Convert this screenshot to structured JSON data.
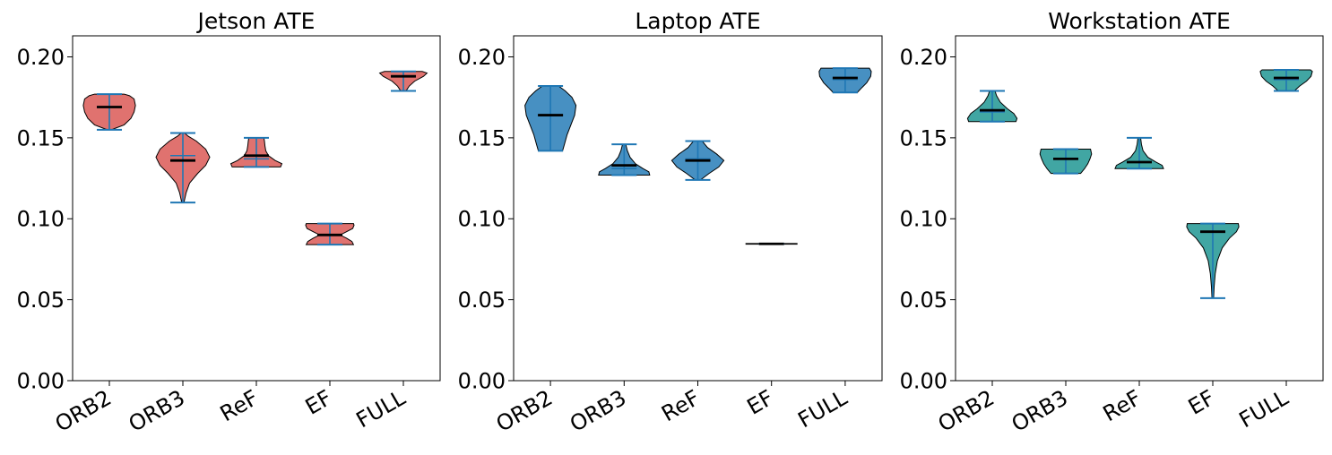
{
  "chart_data": [
    {
      "type": "violin",
      "title": "Jetson ATE",
      "categories": [
        "ORB2",
        "ORB3",
        "ReF",
        "EF",
        "FULL"
      ],
      "ylim": [
        0,
        0.213
      ],
      "yticks": [
        "0.00",
        "0.05",
        "0.10",
        "0.15",
        "0.20"
      ],
      "fill_color": "#d9534f",
      "series": [
        {
          "category": "ORB2",
          "min": 0.155,
          "max": 0.177,
          "median": 0.169,
          "mean": 0.169,
          "profile": [
            [
              0.155,
              0.08
            ],
            [
              0.158,
              0.55
            ],
            [
              0.162,
              0.8
            ],
            [
              0.166,
              0.92
            ],
            [
              0.17,
              0.97
            ],
            [
              0.174,
              0.92
            ],
            [
              0.176,
              0.75
            ],
            [
              0.177,
              0.55
            ]
          ]
        },
        {
          "category": "ORB3",
          "min": 0.11,
          "max": 0.153,
          "median": 0.136,
          "mean": 0.139,
          "profile": [
            [
              0.11,
              0.04
            ],
            [
              0.116,
              0.12
            ],
            [
              0.122,
              0.25
            ],
            [
              0.128,
              0.55
            ],
            [
              0.133,
              0.85
            ],
            [
              0.138,
              1.0
            ],
            [
              0.143,
              0.85
            ],
            [
              0.148,
              0.5
            ],
            [
              0.151,
              0.2
            ],
            [
              0.153,
              0.06
            ]
          ]
        },
        {
          "category": "ReF",
          "min": 0.132,
          "max": 0.15,
          "median": 0.139,
          "mean": 0.137,
          "profile": [
            [
              0.132,
              0.9
            ],
            [
              0.134,
              0.95
            ],
            [
              0.136,
              0.7
            ],
            [
              0.139,
              0.45
            ],
            [
              0.142,
              0.35
            ],
            [
              0.145,
              0.32
            ],
            [
              0.148,
              0.3
            ],
            [
              0.15,
              0.28
            ]
          ]
        },
        {
          "category": "EF",
          "min": 0.084,
          "max": 0.097,
          "median": 0.09,
          "mean": 0.09,
          "profile": [
            [
              0.084,
              0.88
            ],
            [
              0.086,
              0.82
            ],
            [
              0.088,
              0.62
            ],
            [
              0.09,
              0.38
            ],
            [
              0.092,
              0.62
            ],
            [
              0.094,
              0.85
            ],
            [
              0.096,
              0.9
            ],
            [
              0.097,
              0.88
            ]
          ]
        },
        {
          "category": "FULL",
          "min": 0.179,
          "max": 0.191,
          "median": 0.188,
          "mean": 0.188,
          "profile": [
            [
              0.179,
              0.1
            ],
            [
              0.182,
              0.22
            ],
            [
              0.185,
              0.42
            ],
            [
              0.188,
              0.75
            ],
            [
              0.19,
              0.88
            ],
            [
              0.191,
              0.7
            ]
          ]
        }
      ]
    },
    {
      "type": "violin",
      "title": "Laptop ATE",
      "categories": [
        "ORB2",
        "ORB3",
        "ReF",
        "EF",
        "FULL"
      ],
      "ylim": [
        0,
        0.213
      ],
      "yticks": [
        "0.00",
        "0.05",
        "0.10",
        "0.15",
        "0.20"
      ],
      "fill_color": "#1f77b4",
      "series": [
        {
          "category": "ORB2",
          "min": 0.142,
          "max": 0.182,
          "median": 0.164,
          "mean": 0.164,
          "profile": [
            [
              0.142,
              0.45
            ],
            [
              0.146,
              0.52
            ],
            [
              0.152,
              0.62
            ],
            [
              0.158,
              0.76
            ],
            [
              0.164,
              0.9
            ],
            [
              0.17,
              0.95
            ],
            [
              0.175,
              0.8
            ],
            [
              0.179,
              0.55
            ],
            [
              0.182,
              0.3
            ]
          ]
        },
        {
          "category": "ORB3",
          "min": 0.127,
          "max": 0.146,
          "median": 0.133,
          "mean": 0.131,
          "profile": [
            [
              0.127,
              0.95
            ],
            [
              0.129,
              0.92
            ],
            [
              0.131,
              0.7
            ],
            [
              0.134,
              0.42
            ],
            [
              0.138,
              0.22
            ],
            [
              0.142,
              0.12
            ],
            [
              0.146,
              0.06
            ]
          ]
        },
        {
          "category": "ReF",
          "min": 0.124,
          "max": 0.148,
          "median": 0.136,
          "mean": 0.137,
          "profile": [
            [
              0.124,
              0.1
            ],
            [
              0.128,
              0.42
            ],
            [
              0.132,
              0.78
            ],
            [
              0.136,
              0.97
            ],
            [
              0.14,
              0.7
            ],
            [
              0.144,
              0.36
            ],
            [
              0.148,
              0.16
            ]
          ]
        },
        {
          "category": "EF",
          "min": 0.0845,
          "max": 0.0845,
          "median": 0.0845,
          "mean": 0.0845,
          "profile": [
            [
              0.0843,
              0.95
            ],
            [
              0.0847,
              0.95
            ]
          ]
        },
        {
          "category": "FULL",
          "min": 0.178,
          "max": 0.193,
          "median": 0.187,
          "mean": 0.186,
          "profile": [
            [
              0.178,
              0.45
            ],
            [
              0.181,
              0.62
            ],
            [
              0.184,
              0.8
            ],
            [
              0.188,
              0.95
            ],
            [
              0.191,
              0.97
            ],
            [
              0.193,
              0.9
            ]
          ]
        }
      ]
    },
    {
      "type": "violin",
      "title": "Workstation ATE",
      "categories": [
        "ORB2",
        "ORB3",
        "ReF",
        "EF",
        "FULL"
      ],
      "ylim": [
        0,
        0.213
      ],
      "yticks": [
        "0.00",
        "0.05",
        "0.10",
        "0.15",
        "0.20"
      ],
      "fill_color": "#17928f",
      "series": [
        {
          "category": "ORB2",
          "min": 0.16,
          "max": 0.179,
          "median": 0.167,
          "mean": 0.166,
          "profile": [
            [
              0.16,
              0.88
            ],
            [
              0.162,
              0.92
            ],
            [
              0.165,
              0.8
            ],
            [
              0.168,
              0.56
            ],
            [
              0.172,
              0.3
            ],
            [
              0.176,
              0.16
            ],
            [
              0.179,
              0.1
            ]
          ]
        },
        {
          "category": "ORB3",
          "min": 0.128,
          "max": 0.143,
          "median": 0.137,
          "mean": 0.137,
          "profile": [
            [
              0.128,
              0.55
            ],
            [
              0.131,
              0.7
            ],
            [
              0.134,
              0.82
            ],
            [
              0.137,
              0.9
            ],
            [
              0.14,
              0.96
            ],
            [
              0.143,
              0.92
            ]
          ]
        },
        {
          "category": "ReF",
          "min": 0.131,
          "max": 0.15,
          "median": 0.135,
          "mean": 0.135,
          "profile": [
            [
              0.131,
              0.9
            ],
            [
              0.133,
              0.85
            ],
            [
              0.135,
              0.62
            ],
            [
              0.138,
              0.32
            ],
            [
              0.142,
              0.14
            ],
            [
              0.146,
              0.08
            ],
            [
              0.15,
              0.05
            ]
          ]
        },
        {
          "category": "EF",
          "min": 0.051,
          "max": 0.097,
          "median": 0.092,
          "mean": 0.092,
          "profile": [
            [
              0.051,
              0.03
            ],
            [
              0.058,
              0.05
            ],
            [
              0.066,
              0.09
            ],
            [
              0.074,
              0.17
            ],
            [
              0.082,
              0.35
            ],
            [
              0.088,
              0.62
            ],
            [
              0.092,
              0.88
            ],
            [
              0.095,
              0.97
            ],
            [
              0.097,
              0.95
            ]
          ]
        },
        {
          "category": "FULL",
          "min": 0.179,
          "max": 0.192,
          "median": 0.187,
          "mean": 0.186,
          "profile": [
            [
              0.179,
              0.3
            ],
            [
              0.182,
              0.5
            ],
            [
              0.185,
              0.75
            ],
            [
              0.188,
              0.92
            ],
            [
              0.191,
              0.97
            ],
            [
              0.192,
              0.9
            ]
          ]
        }
      ]
    }
  ]
}
